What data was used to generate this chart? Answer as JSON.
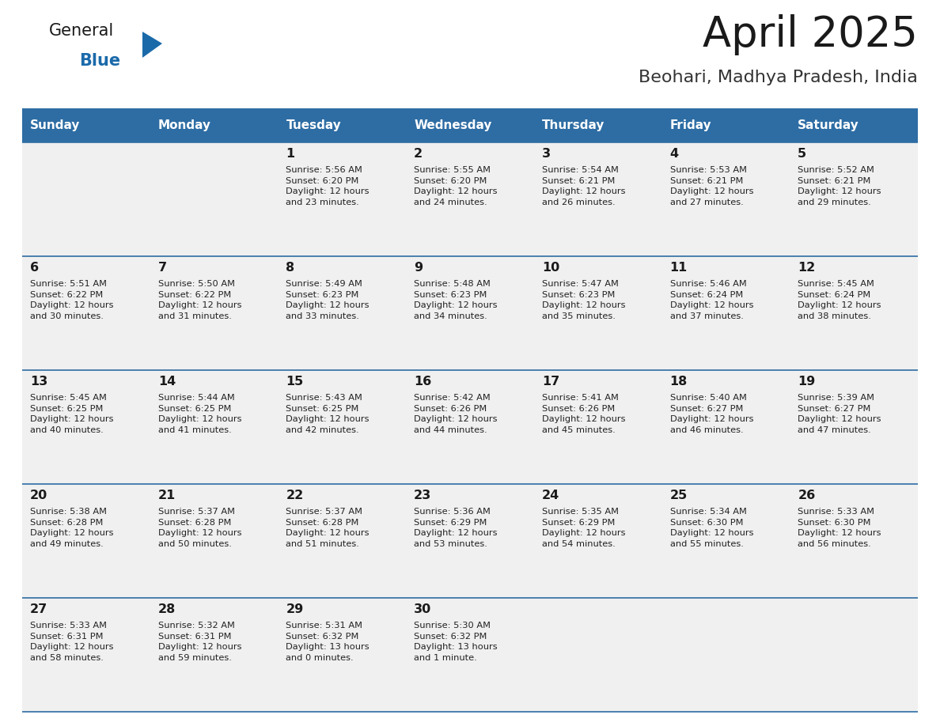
{
  "title": "April 2025",
  "subtitle": "Beohari, Madhya Pradesh, India",
  "header_bg": "#2E6DA4",
  "header_text": "#FFFFFF",
  "row_bg": "#F0F0F0",
  "cell_border": "#2E6DA4",
  "days_of_week": [
    "Sunday",
    "Monday",
    "Tuesday",
    "Wednesday",
    "Thursday",
    "Friday",
    "Saturday"
  ],
  "weeks": [
    [
      {
        "day": "",
        "info": ""
      },
      {
        "day": "",
        "info": ""
      },
      {
        "day": "1",
        "info": "Sunrise: 5:56 AM\nSunset: 6:20 PM\nDaylight: 12 hours\nand 23 minutes."
      },
      {
        "day": "2",
        "info": "Sunrise: 5:55 AM\nSunset: 6:20 PM\nDaylight: 12 hours\nand 24 minutes."
      },
      {
        "day": "3",
        "info": "Sunrise: 5:54 AM\nSunset: 6:21 PM\nDaylight: 12 hours\nand 26 minutes."
      },
      {
        "day": "4",
        "info": "Sunrise: 5:53 AM\nSunset: 6:21 PM\nDaylight: 12 hours\nand 27 minutes."
      },
      {
        "day": "5",
        "info": "Sunrise: 5:52 AM\nSunset: 6:21 PM\nDaylight: 12 hours\nand 29 minutes."
      }
    ],
    [
      {
        "day": "6",
        "info": "Sunrise: 5:51 AM\nSunset: 6:22 PM\nDaylight: 12 hours\nand 30 minutes."
      },
      {
        "day": "7",
        "info": "Sunrise: 5:50 AM\nSunset: 6:22 PM\nDaylight: 12 hours\nand 31 minutes."
      },
      {
        "day": "8",
        "info": "Sunrise: 5:49 AM\nSunset: 6:23 PM\nDaylight: 12 hours\nand 33 minutes."
      },
      {
        "day": "9",
        "info": "Sunrise: 5:48 AM\nSunset: 6:23 PM\nDaylight: 12 hours\nand 34 minutes."
      },
      {
        "day": "10",
        "info": "Sunrise: 5:47 AM\nSunset: 6:23 PM\nDaylight: 12 hours\nand 35 minutes."
      },
      {
        "day": "11",
        "info": "Sunrise: 5:46 AM\nSunset: 6:24 PM\nDaylight: 12 hours\nand 37 minutes."
      },
      {
        "day": "12",
        "info": "Sunrise: 5:45 AM\nSunset: 6:24 PM\nDaylight: 12 hours\nand 38 minutes."
      }
    ],
    [
      {
        "day": "13",
        "info": "Sunrise: 5:45 AM\nSunset: 6:25 PM\nDaylight: 12 hours\nand 40 minutes."
      },
      {
        "day": "14",
        "info": "Sunrise: 5:44 AM\nSunset: 6:25 PM\nDaylight: 12 hours\nand 41 minutes."
      },
      {
        "day": "15",
        "info": "Sunrise: 5:43 AM\nSunset: 6:25 PM\nDaylight: 12 hours\nand 42 minutes."
      },
      {
        "day": "16",
        "info": "Sunrise: 5:42 AM\nSunset: 6:26 PM\nDaylight: 12 hours\nand 44 minutes."
      },
      {
        "day": "17",
        "info": "Sunrise: 5:41 AM\nSunset: 6:26 PM\nDaylight: 12 hours\nand 45 minutes."
      },
      {
        "day": "18",
        "info": "Sunrise: 5:40 AM\nSunset: 6:27 PM\nDaylight: 12 hours\nand 46 minutes."
      },
      {
        "day": "19",
        "info": "Sunrise: 5:39 AM\nSunset: 6:27 PM\nDaylight: 12 hours\nand 47 minutes."
      }
    ],
    [
      {
        "day": "20",
        "info": "Sunrise: 5:38 AM\nSunset: 6:28 PM\nDaylight: 12 hours\nand 49 minutes."
      },
      {
        "day": "21",
        "info": "Sunrise: 5:37 AM\nSunset: 6:28 PM\nDaylight: 12 hours\nand 50 minutes."
      },
      {
        "day": "22",
        "info": "Sunrise: 5:37 AM\nSunset: 6:28 PM\nDaylight: 12 hours\nand 51 minutes."
      },
      {
        "day": "23",
        "info": "Sunrise: 5:36 AM\nSunset: 6:29 PM\nDaylight: 12 hours\nand 53 minutes."
      },
      {
        "day": "24",
        "info": "Sunrise: 5:35 AM\nSunset: 6:29 PM\nDaylight: 12 hours\nand 54 minutes."
      },
      {
        "day": "25",
        "info": "Sunrise: 5:34 AM\nSunset: 6:30 PM\nDaylight: 12 hours\nand 55 minutes."
      },
      {
        "day": "26",
        "info": "Sunrise: 5:33 AM\nSunset: 6:30 PM\nDaylight: 12 hours\nand 56 minutes."
      }
    ],
    [
      {
        "day": "27",
        "info": "Sunrise: 5:33 AM\nSunset: 6:31 PM\nDaylight: 12 hours\nand 58 minutes."
      },
      {
        "day": "28",
        "info": "Sunrise: 5:32 AM\nSunset: 6:31 PM\nDaylight: 12 hours\nand 59 minutes."
      },
      {
        "day": "29",
        "info": "Sunrise: 5:31 AM\nSunset: 6:32 PM\nDaylight: 13 hours\nand 0 minutes."
      },
      {
        "day": "30",
        "info": "Sunrise: 5:30 AM\nSunset: 6:32 PM\nDaylight: 13 hours\nand 1 minute."
      },
      {
        "day": "",
        "info": ""
      },
      {
        "day": "",
        "info": ""
      },
      {
        "day": "",
        "info": ""
      }
    ]
  ],
  "logo_color_general": "#1a1a1a",
  "logo_color_blue": "#1a6aaa",
  "title_color": "#1a1a1a",
  "subtitle_color": "#333333",
  "fig_width": 11.88,
  "fig_height": 9.18,
  "dpi": 100
}
